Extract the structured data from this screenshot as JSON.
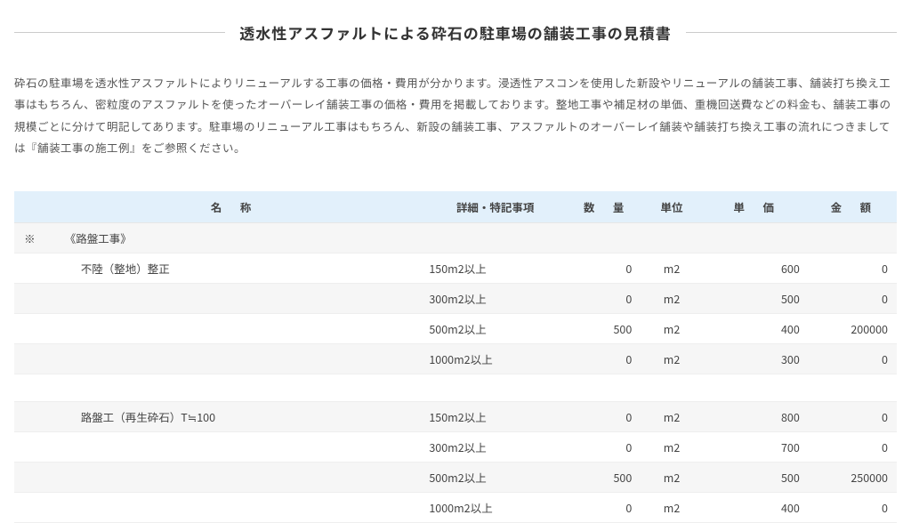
{
  "title": "透水性アスファルトによる砕石の駐車場の舗装工事の見積書",
  "description": "砕石の駐車場を透水性アスファルトによりリニューアルする工事の価格・費用が分かります。浸透性アスコンを使用した新設やリニューアルの舗装工事、舗装打ち換え工事はもちろん、密粒度のアスファルトを使ったオーバーレイ舗装工事の価格・費用を掲載しております。整地工事や補足材の単価、重機回送費などの料金も、舗装工事の規模ごとに分けて明記してあります。駐車場のリニューアル工事はもちろん、新設の舗装工事、アスファルトのオーバーレイ舗装や舗装打ち換え工事の流れにつきましては『舗装工事の施工例』をご参照ください。",
  "table": {
    "columns": {
      "name": "名　称",
      "detail": "詳細・特記事項",
      "quantity": "数　量",
      "unit": "単位",
      "unit_price": "単　価",
      "amount": "金　額"
    },
    "rows": [
      {
        "mark": "※",
        "name": "《路盤工事》",
        "detail": "",
        "qty": "",
        "unit": "",
        "price": "",
        "amount": "",
        "stripe": "even",
        "name_cls": "name-section"
      },
      {
        "mark": "",
        "name": "不陸（整地）整正",
        "detail": "150m2以上",
        "qty": "0",
        "unit": "m2",
        "price": "600",
        "amount": "0",
        "stripe": "odd",
        "name_cls": "name-header"
      },
      {
        "mark": "",
        "name": "",
        "detail": "300m2以上",
        "qty": "0",
        "unit": "m2",
        "price": "500",
        "amount": "0",
        "stripe": "even",
        "name_cls": "name-col"
      },
      {
        "mark": "",
        "name": "",
        "detail": "500m2以上",
        "qty": "500",
        "unit": "m2",
        "price": "400",
        "amount": "200000",
        "stripe": "odd",
        "name_cls": "name-col"
      },
      {
        "mark": "",
        "name": "",
        "detail": "1000m2以上",
        "qty": "0",
        "unit": "m2",
        "price": "300",
        "amount": "0",
        "stripe": "even",
        "name_cls": "name-col"
      },
      {
        "mark": "",
        "name": "",
        "detail": "",
        "qty": "",
        "unit": "",
        "price": "",
        "amount": "",
        "stripe": "odd",
        "name_cls": "name-col"
      },
      {
        "mark": "",
        "name": "路盤工（再生砕石）T≒100",
        "detail": "150m2以上",
        "qty": "0",
        "unit": "m2",
        "price": "800",
        "amount": "0",
        "stripe": "even",
        "name_cls": "name-header"
      },
      {
        "mark": "",
        "name": "",
        "detail": "300m2以上",
        "qty": "0",
        "unit": "m2",
        "price": "700",
        "amount": "0",
        "stripe": "odd",
        "name_cls": "name-col"
      },
      {
        "mark": "",
        "name": "",
        "detail": "500m2以上",
        "qty": "500",
        "unit": "m2",
        "price": "500",
        "amount": "250000",
        "stripe": "even",
        "name_cls": "name-col"
      },
      {
        "mark": "",
        "name": "",
        "detail": "1000m2以上",
        "qty": "0",
        "unit": "m2",
        "price": "400",
        "amount": "0",
        "stripe": "odd",
        "name_cls": "name-col"
      }
    ],
    "header_bg": "#e2f0fb",
    "row_even_bg": "#f6f6f6",
    "row_odd_bg": "#ffffff",
    "border_color": "#eeeeee",
    "font_size": 12.5
  }
}
